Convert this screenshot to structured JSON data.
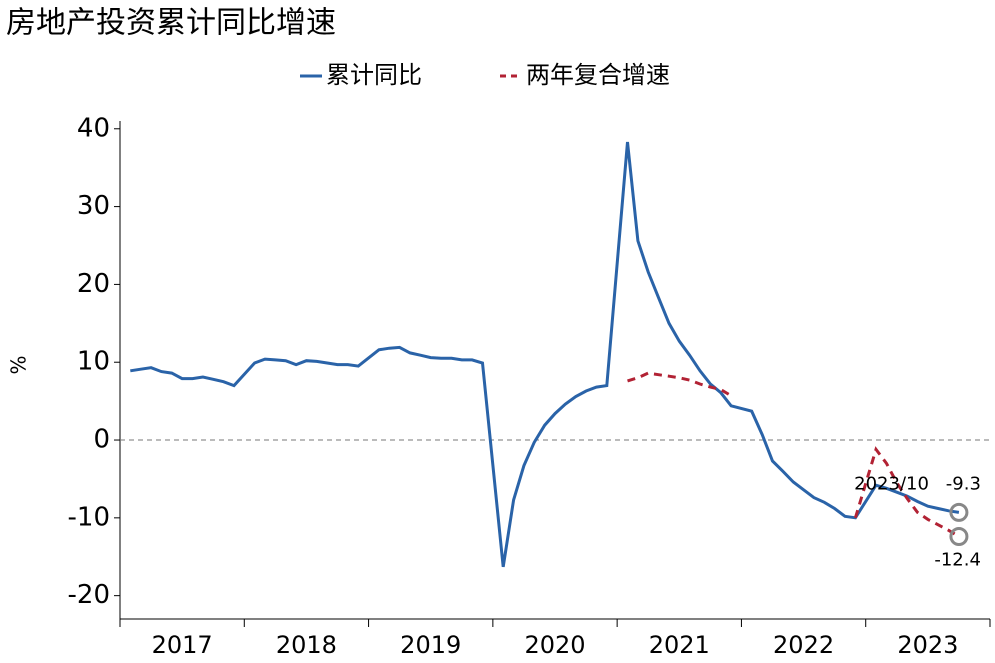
{
  "chart_data": {
    "type": "line",
    "title": "房地产投资累计同比增速",
    "ylabel": "%",
    "x": [
      2017.083,
      2017.167,
      2017.25,
      2017.333,
      2017.417,
      2017.5,
      2017.583,
      2017.667,
      2017.75,
      2017.833,
      2017.917,
      2018.083,
      2018.167,
      2018.25,
      2018.333,
      2018.417,
      2018.5,
      2018.583,
      2018.667,
      2018.75,
      2018.833,
      2018.917,
      2019.083,
      2019.167,
      2019.25,
      2019.333,
      2019.417,
      2019.5,
      2019.583,
      2019.667,
      2019.75,
      2019.833,
      2019.917,
      2020.083,
      2020.167,
      2020.25,
      2020.333,
      2020.417,
      2020.5,
      2020.583,
      2020.667,
      2020.75,
      2020.833,
      2020.917,
      2021.083,
      2021.167,
      2021.25,
      2021.333,
      2021.417,
      2021.5,
      2021.583,
      2021.667,
      2021.75,
      2021.833,
      2021.917,
      2022.083,
      2022.167,
      2022.25,
      2022.333,
      2022.417,
      2022.5,
      2022.583,
      2022.667,
      2022.75,
      2022.833,
      2022.917,
      2023.083,
      2023.167,
      2023.25,
      2023.333,
      2023.417,
      2023.5,
      2023.583,
      2023.667,
      2023.75
    ],
    "series": [
      {
        "name": "累计同比",
        "color": "#2a63a8",
        "dash": false,
        "values": [
          8.9,
          9.1,
          9.3,
          8.8,
          8.6,
          7.9,
          7.9,
          8.1,
          7.8,
          7.5,
          7.0,
          9.9,
          10.4,
          10.3,
          10.2,
          9.7,
          10.2,
          10.1,
          9.9,
          9.7,
          9.7,
          9.5,
          11.6,
          11.8,
          11.9,
          11.2,
          10.9,
          10.6,
          10.5,
          10.5,
          10.3,
          10.3,
          9.9,
          -16.3,
          -7.7,
          -3.3,
          -0.3,
          1.9,
          3.4,
          4.6,
          5.6,
          6.3,
          6.8,
          7.0,
          38.3,
          25.6,
          21.6,
          18.3,
          15.0,
          12.7,
          10.9,
          8.9,
          7.2,
          6.1,
          4.4,
          3.7,
          0.7,
          -2.7,
          -4.0,
          -5.4,
          -6.4,
          -7.4,
          -8.0,
          -8.8,
          -9.8,
          -10.0,
          -5.8,
          -6.2,
          -6.7,
          -7.2,
          -7.9,
          -8.5,
          -8.8,
          -9.1,
          -9.3
        ]
      },
      {
        "name": "两年复合增速",
        "color": "#b22234",
        "dash": true,
        "values": [
          null,
          null,
          null,
          null,
          null,
          null,
          null,
          null,
          null,
          null,
          null,
          null,
          null,
          null,
          null,
          null,
          null,
          null,
          null,
          null,
          null,
          null,
          null,
          null,
          null,
          null,
          null,
          null,
          null,
          null,
          null,
          null,
          null,
          null,
          null,
          null,
          null,
          null,
          null,
          null,
          null,
          null,
          null,
          null,
          7.6,
          8.0,
          8.6,
          8.4,
          8.2,
          8.0,
          7.7,
          7.2,
          6.8,
          6.5,
          5.7,
          null,
          null,
          null,
          null,
          null,
          null,
          null,
          null,
          null,
          null,
          -10.0,
          -1.2,
          -3.0,
          -5.5,
          -7.5,
          -9.3,
          -10.2,
          -10.9,
          -11.6,
          -12.4
        ]
      }
    ],
    "annotation": "2023/10",
    "xlim": [
      2017,
      2024
    ],
    "xticks": [
      {
        "value": 2017.5,
        "label": "2017"
      },
      {
        "value": 2018.5,
        "label": "2018"
      },
      {
        "value": 2019.5,
        "label": "2019"
      },
      {
        "value": 2020.5,
        "label": "2020"
      },
      {
        "value": 2021.5,
        "label": "2021"
      },
      {
        "value": 2022.5,
        "label": "2022"
      },
      {
        "value": 2023.5,
        "label": "2023"
      }
    ],
    "ylim": [
      -23,
      41
    ],
    "yticks": [
      -20,
      -10,
      0,
      10,
      20,
      30,
      40
    ]
  }
}
